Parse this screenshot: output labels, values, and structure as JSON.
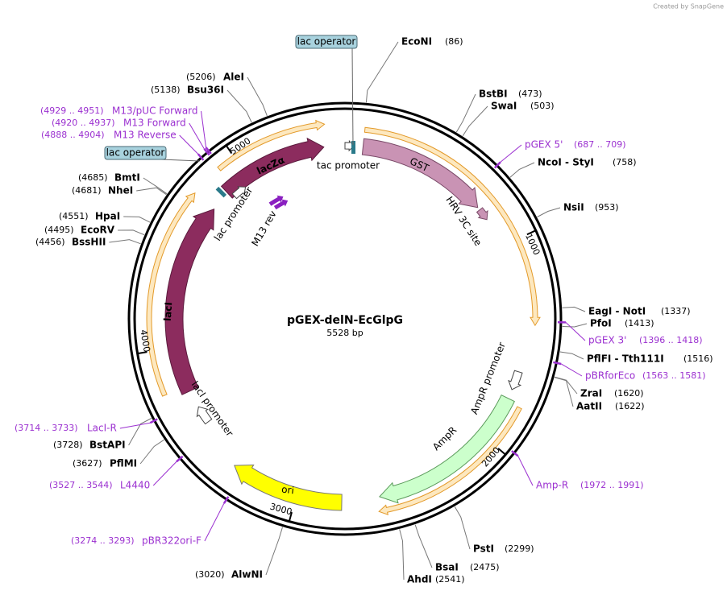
{
  "header": {
    "credit": "Created by SnapGene"
  },
  "plasmid": {
    "name": "pGEX-delN-EcGlpG",
    "size": "5528 bp"
  },
  "operators": [
    "lac operator",
    "lac operator"
  ],
  "sites": [
    {
      "name": "EcoNI",
      "position": "(86)"
    },
    {
      "name": "BstBI",
      "position": "(473)"
    },
    {
      "name": "SwaI",
      "position": "(503)"
    },
    {
      "name": "NcoI - StyI",
      "position": "(758)"
    },
    {
      "name": "NsiI",
      "position": "(953)"
    },
    {
      "name": "EagI - NotI",
      "position": "(1337)"
    },
    {
      "name": "PfoI",
      "position": "(1413)"
    },
    {
      "name": "PflFI - Tth111I",
      "position": "(1516)"
    },
    {
      "name": "ZraI",
      "position": "(1620)"
    },
    {
      "name": "AatII",
      "position": "(1622)"
    },
    {
      "name": "PstI",
      "position": "(2299)"
    },
    {
      "name": "BsaI",
      "position": "(2475)"
    },
    {
      "name": "AhdI",
      "position": "(2541)"
    },
    {
      "name": "AlwNI",
      "position": "(3020)"
    },
    {
      "name": "PflMI",
      "position": "(3627)"
    },
    {
      "name": "BstAPI",
      "position": "(3728)"
    },
    {
      "name": "BssHII",
      "position": "(4456)"
    },
    {
      "name": "EcoRV",
      "position": "(4495)"
    },
    {
      "name": "HpaI",
      "position": "(4551)"
    },
    {
      "name": "NheI",
      "position": "(4681)"
    },
    {
      "name": "BmtI",
      "position": "(4685)"
    },
    {
      "name": "Bsu36I",
      "position": "(5138)"
    },
    {
      "name": "AleI",
      "position": "(5206)"
    }
  ],
  "primers": [
    {
      "name": "pGEX 5'",
      "range": "(687 .. 709)"
    },
    {
      "name": "pGEX 3'",
      "range": "(1396 .. 1418)"
    },
    {
      "name": "pBRforEco",
      "range": "(1563 .. 1581)"
    },
    {
      "name": "Amp-R",
      "range": "(1972 .. 1991)"
    },
    {
      "name": "pBR322ori-F",
      "range": "(3274 .. 3293)"
    },
    {
      "name": "L4440",
      "range": "(3527 .. 3544)"
    },
    {
      "name": "LacI-R",
      "range": "(3714 .. 3733)"
    },
    {
      "name": "M13 Reverse",
      "range": "(4888 .. 4904)"
    },
    {
      "name": "M13 Forward",
      "range": "(4920 .. 4937)"
    },
    {
      "name": "M13/pUC Forward",
      "range": "(4929 .. 4951)"
    }
  ],
  "features": [
    "tac promoter",
    "GST",
    "HRV 3C site",
    "lacZα",
    "lac promoter",
    "M13 rev",
    "lacI",
    "lacI promoter",
    "ori",
    "AmpR",
    "AmpR promoter"
  ],
  "ruler": [
    1000,
    2000,
    3000,
    4000,
    5000
  ]
}
